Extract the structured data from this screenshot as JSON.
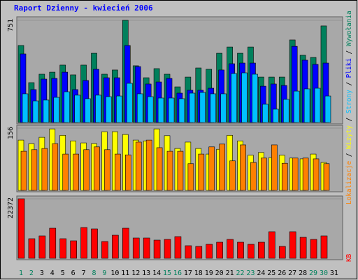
{
  "title": "Raport Dzienny -  kwiecień 2006",
  "legend_separator": " / ",
  "chart_data": [
    {
      "type": "bar",
      "ylim": [
        0,
        751
      ],
      "yticks": [
        751
      ],
      "series": [
        {
          "name": "Wywołania",
          "color": "#00805c",
          "values": [
            566,
            293,
            355,
            370,
            422,
            350,
            422,
            509,
            355,
            386,
            751,
            417,
            329,
            396,
            355,
            262,
            334,
            401,
            391,
            509,
            555,
            509,
            555,
            334,
            334,
            334,
            607,
            494,
            478,
            710,
            null
          ]
        },
        {
          "name": "Pliki",
          "color": "#0000ff",
          "values": [
            504,
            242,
            319,
            324,
            370,
            242,
            309,
            391,
            329,
            329,
            566,
            411,
            283,
            298,
            324,
            216,
            237,
            237,
            252,
            386,
            432,
            437,
            437,
            267,
            283,
            272,
            560,
            458,
            427,
            437,
            null
          ]
        },
        {
          "name": "Strony",
          "color": "#00c0ff",
          "values": [
            211,
            159,
            165,
            185,
            226,
            201,
            175,
            201,
            190,
            195,
            288,
            211,
            190,
            180,
            180,
            175,
            216,
            221,
            211,
            211,
            360,
            365,
            355,
            134,
            98,
            170,
            231,
            247,
            252,
            195,
            null
          ]
        }
      ]
    },
    {
      "type": "bar",
      "ylim": [
        0,
        156
      ],
      "yticks": [
        156
      ],
      "series": [
        {
          "name": "Wizyty",
          "color": "#ffff00",
          "values": [
            126,
            117,
            133,
            154,
            138,
            124,
            119,
            117,
            147,
            147,
            140,
            126,
            124,
            154,
            137,
            105,
            121,
            105,
            91,
            103,
            138,
            124,
            88,
            95,
            82,
            88,
            81,
            79,
            91,
            70,
            null
          ]
        },
        {
          "name": "Lokalizacje",
          "color": "#ff8000",
          "values": [
            98,
            102,
            105,
            117,
            91,
            91,
            102,
            109,
            102,
            91,
            89,
            121,
            126,
            107,
            98,
            98,
            67,
            91,
            109,
            116,
            74,
            114,
            70,
            81,
            114,
            68,
            81,
            81,
            79,
            67,
            null
          ]
        }
      ]
    },
    {
      "type": "bar",
      "ylim": [
        0,
        22372
      ],
      "yticks": [
        22372
      ],
      "categories": [
        "1",
        "2",
        "3",
        "4",
        "5",
        "6",
        "7",
        "8",
        "9",
        "10",
        "11",
        "12",
        "13",
        "14",
        "15",
        "16",
        "17",
        "18",
        "19",
        "20",
        "21",
        "22",
        "23",
        "24",
        "25",
        "26",
        "27",
        "28",
        "29",
        "30",
        "31"
      ],
      "category_colors": [
        "#00805c",
        "#00805c",
        "#000000",
        "#000000",
        "#000000",
        "#000000",
        "#000000",
        "#00805c",
        "#00805c",
        "#000000",
        "#000000",
        "#000000",
        "#000000",
        "#000000",
        "#00805c",
        "#00805c",
        "#000000",
        "#000000",
        "#000000",
        "#000000",
        "#000000",
        "#00805c",
        "#00805c",
        "#000000",
        "#000000",
        "#000000",
        "#000000",
        "#000000",
        "#00805c",
        "#00805c",
        "#000000"
      ],
      "series": [
        {
          "name": "KB",
          "color": "#ff0000",
          "values": [
            22372,
            7370,
            8423,
            11318,
            7370,
            6580,
            11581,
            11054,
            6317,
            8686,
            11318,
            7633,
            7633,
            6843,
            7107,
            8160,
            4738,
            4475,
            5264,
            6054,
            7107,
            6054,
            5264,
            6054,
            10002,
            4475,
            10002,
            7896,
            7107,
            8423,
            null
          ]
        }
      ]
    }
  ]
}
